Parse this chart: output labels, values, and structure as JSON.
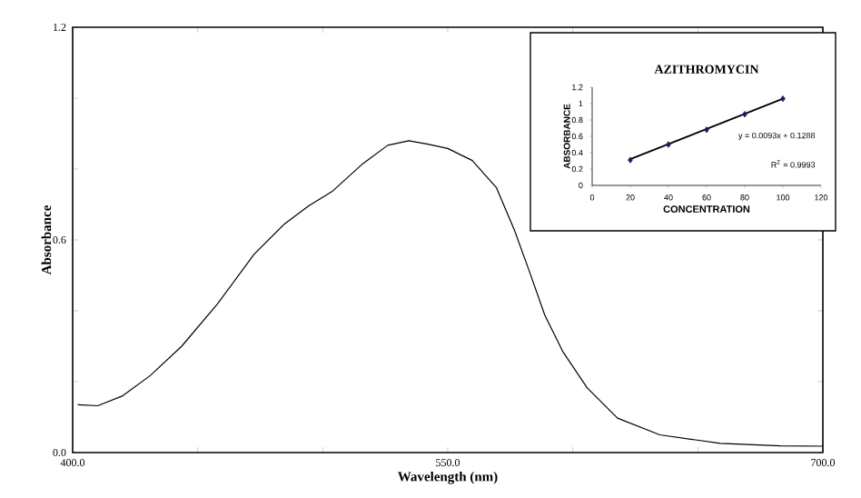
{
  "chart_data": [
    {
      "type": "line",
      "xlabel": "Wavelength (nm)",
      "ylabel": "Absorbance",
      "xlim": [
        400,
        700
      ],
      "ylim": [
        0,
        1.2
      ],
      "xticks": [
        {
          "value": 400,
          "label": "400.0"
        },
        {
          "value": 450,
          "label": null
        },
        {
          "value": 500,
          "label": null
        },
        {
          "value": 550,
          "label": "550.0"
        },
        {
          "value": 600,
          "label": null
        },
        {
          "value": 650,
          "label": null
        },
        {
          "value": 700,
          "label": "700.0"
        }
      ],
      "yticks": [
        {
          "value": 0,
          "label": "0.0"
        },
        {
          "value": 0.2,
          "label": null
        },
        {
          "value": 0.4,
          "label": null
        },
        {
          "value": 0.6,
          "label": "0.6"
        },
        {
          "value": 0.8,
          "label": null
        },
        {
          "value": 1.0,
          "label": null
        },
        {
          "value": 1.2,
          "label": "1.2"
        }
      ],
      "series": [
        {
          "color": "#000000",
          "x": [
            402,
            410,
            420,
            431,
            443.6,
            458,
            472.6,
            484.7,
            494.4,
            504,
            516,
            526,
            534.4,
            542,
            550,
            559.8,
            569.5,
            576.7,
            582.8,
            588.8,
            596,
            605.7,
            617.9,
            634.8,
            659,
            683,
            700
          ],
          "values": [
            0.135,
            0.132,
            0.16,
            0.217,
            0.3,
            0.42,
            0.56,
            0.645,
            0.696,
            0.738,
            0.815,
            0.867,
            0.88,
            0.87,
            0.858,
            0.824,
            0.747,
            0.627,
            0.508,
            0.388,
            0.285,
            0.183,
            0.097,
            0.05,
            0.026,
            0.019,
            0.018
          ]
        }
      ]
    },
    {
      "type": "scatter",
      "title": "AZITHROMYCIN",
      "xlabel": "CONCENTRATION",
      "ylabel": "ABSORBANCE",
      "xlim": [
        0,
        120
      ],
      "ylim": [
        0,
        1.2
      ],
      "xticks": [
        0,
        20,
        40,
        60,
        80,
        100,
        120
      ],
      "yticks": [
        0,
        0.2,
        0.4,
        0.6,
        0.8,
        1,
        1.2
      ],
      "marker": "diamond",
      "series": [
        {
          "color": "#1a1a6e",
          "x": [
            20,
            40,
            60,
            80,
            100
          ],
          "values": [
            0.31,
            0.5,
            0.68,
            0.87,
            1.06
          ]
        },
        {
          "type": "line",
          "color": "#000000",
          "marker": "none",
          "x": [
            20,
            100
          ],
          "values": [
            0.32,
            1.06
          ]
        }
      ],
      "annotations": [
        "y = 0.0093x + 0.1288",
        "R$^{2}$ = 0.9993"
      ]
    }
  ]
}
